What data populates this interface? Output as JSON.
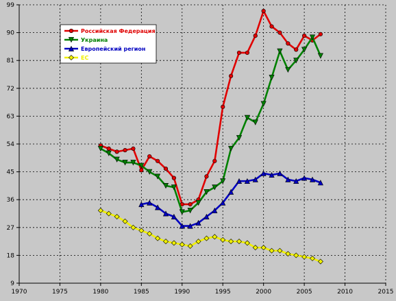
{
  "chart_data": {
    "type": "line",
    "title": "",
    "xlabel": "",
    "ylabel": "",
    "xlim": [
      1970,
      2015
    ],
    "ylim": [
      9,
      99
    ],
    "x_ticks": [
      1970,
      1975,
      1980,
      1985,
      1990,
      1995,
      2000,
      2005,
      2010,
      2015
    ],
    "y_ticks": [
      9,
      18,
      27,
      36,
      45,
      54,
      63,
      72,
      81,
      90,
      99
    ],
    "grid": true,
    "legend_position": "top-left",
    "series": [
      {
        "name": "Российская Федерация",
        "color": "#e00000",
        "marker": "circle",
        "x": [
          1980,
          1981,
          1982,
          1983,
          1984,
          1985,
          1986,
          1987,
          1988,
          1989,
          1990,
          1991,
          1992,
          1993,
          1994,
          1995,
          1996,
          1997,
          1998,
          1999,
          2000,
          2001,
          2002,
          2003,
          2004,
          2005,
          2006,
          2007
        ],
        "y": [
          53.5,
          52.5,
          51.5,
          52,
          52.5,
          45.5,
          50,
          48.5,
          46,
          43,
          34.5,
          34.5,
          36,
          43.5,
          48.5,
          66,
          76,
          83.5,
          83.5,
          89,
          97,
          92,
          90,
          86.5,
          84.5,
          89,
          87.5,
          89.5
        ]
      },
      {
        "name": "Украина",
        "color": "#008000",
        "marker": "triangle-down",
        "x": [
          1980,
          1981,
          1982,
          1983,
          1984,
          1985,
          1986,
          1987,
          1988,
          1989,
          1990,
          1991,
          1992,
          1993,
          1994,
          1995,
          1996,
          1997,
          1998,
          1999,
          2000,
          2001,
          2002,
          2003,
          2004,
          2005,
          2006,
          2007
        ],
        "y": [
          52.5,
          51,
          49,
          48,
          48,
          47,
          45,
          43.5,
          40.5,
          40,
          32,
          32.5,
          35,
          38.5,
          40,
          42,
          52.5,
          56,
          62.5,
          61,
          67,
          75.5,
          84,
          78,
          81,
          84.5,
          88.5,
          82.5
        ]
      },
      {
        "name": "Европейский регион",
        "color": "#0000c0",
        "marker": "triangle-up",
        "x": [
          1985,
          1986,
          1987,
          1988,
          1989,
          1990,
          1991,
          1992,
          1993,
          1994,
          1995,
          1996,
          1997,
          1998,
          1999,
          2000,
          2001,
          2002,
          2003,
          2004,
          2005,
          2006,
          2007
        ],
        "y": [
          34.5,
          35,
          33.5,
          31.5,
          30.5,
          27.5,
          27.5,
          28.5,
          30.5,
          32.5,
          35,
          38.5,
          42,
          42,
          42.5,
          44.5,
          44,
          44.5,
          42.5,
          42,
          43,
          42.5,
          41.5
        ]
      },
      {
        "name": "ЕС",
        "color": "#f0f000",
        "marker": "diamond",
        "x": [
          1980,
          1981,
          1982,
          1983,
          1984,
          1985,
          1986,
          1987,
          1988,
          1989,
          1990,
          1991,
          1992,
          1993,
          1994,
          1995,
          1996,
          1997,
          1998,
          1999,
          2000,
          2001,
          2002,
          2003,
          2004,
          2005,
          2006,
          2007
        ],
        "y": [
          32.5,
          31.5,
          30.5,
          29,
          27,
          26,
          25,
          23.5,
          22.5,
          22,
          21.5,
          21,
          22.5,
          23.5,
          24,
          23,
          22.5,
          22.5,
          22,
          20.5,
          20.5,
          19.5,
          19.5,
          18.5,
          18,
          17.5,
          17,
          16
        ]
      }
    ]
  }
}
